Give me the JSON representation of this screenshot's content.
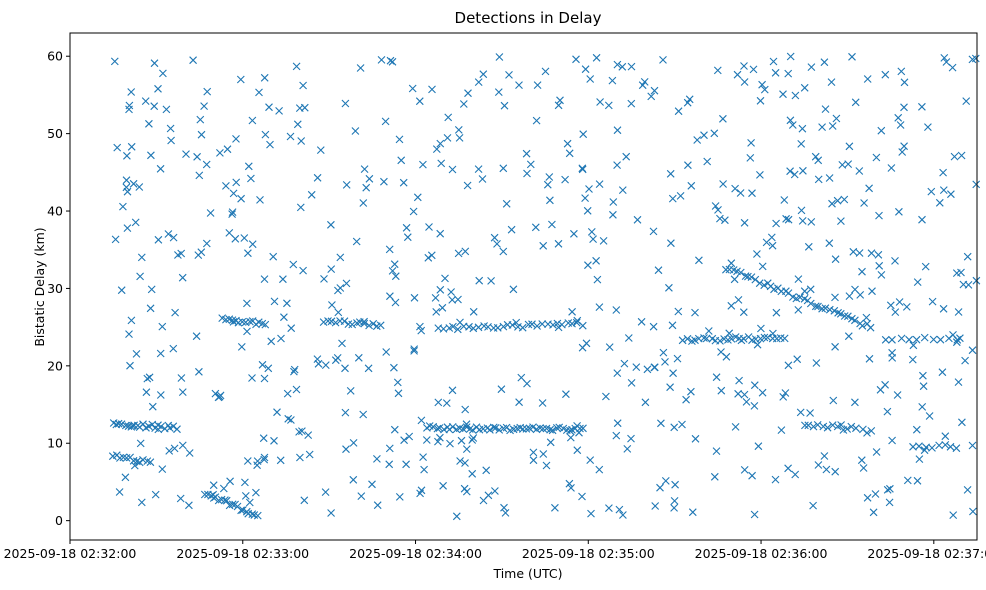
{
  "chart_data": {
    "type": "scatter",
    "title": "Detections in Delay",
    "xlabel": "Time (UTC)",
    "ylabel": "Bistatic Delay (km)",
    "marker": "x",
    "color": "#1f77b4",
    "grid": false,
    "xlim": [
      "2025-09-18 02:32:00",
      "2025-09-18 02:37:15"
    ],
    "ylim": [
      -2.5,
      63
    ],
    "x_ticks": [
      "2025-09-18 02:32:00",
      "2025-09-18 02:33:00",
      "2025-09-18 02:34:00",
      "2025-09-18 02:35:00",
      "2025-09-18 02:36:00",
      "2025-09-18 02:37:00"
    ],
    "y_ticks": [
      0,
      10,
      20,
      30,
      40,
      50,
      60
    ],
    "x_start": "2025-09-18 02:32:15",
    "x_end": "2025-09-18 02:37:15",
    "series": [
      {
        "seed": 20250918,
        "noise_points": 700,
        "noise_y_range": [
          0.5,
          60
        ],
        "tracks": [
          {
            "from": [
              "2025-09-18 02:32:15",
              12.5
            ],
            "to": [
              "2025-09-18 02:32:37",
              12.0
            ],
            "points": 22
          },
          {
            "from": [
              "2025-09-18 02:32:15",
              8.5
            ],
            "to": [
              "2025-09-18 02:32:28",
              7.5
            ],
            "points": 12
          },
          {
            "from": [
              "2025-09-18 02:32:47",
              3.6
            ],
            "to": [
              "2025-09-18 02:33:05",
              0.6
            ],
            "points": 20
          },
          {
            "from": [
              "2025-09-18 02:32:53",
              26.0
            ],
            "to": [
              "2025-09-18 02:33:08",
              25.4
            ],
            "points": 14
          },
          {
            "from": [
              "2025-09-18 02:33:28",
              25.8
            ],
            "to": [
              "2025-09-18 02:33:48",
              25.2
            ],
            "points": 15
          },
          {
            "from": [
              "2025-09-18 02:34:04",
              12.0
            ],
            "to": [
              "2025-09-18 02:34:58",
              11.8
            ],
            "points": 48
          },
          {
            "from": [
              "2025-09-18 02:34:08",
              24.8
            ],
            "to": [
              "2025-09-18 02:34:58",
              25.4
            ],
            "points": 30
          },
          {
            "from": [
              "2025-09-18 02:35:33",
              23.4
            ],
            "to": [
              "2025-09-18 02:36:08",
              23.6
            ],
            "points": 26
          },
          {
            "from": [
              "2025-09-18 02:35:48",
              32.6
            ],
            "to": [
              "2025-09-18 02:36:38",
              25.0
            ],
            "points": 40
          },
          {
            "from": [
              "2025-09-18 02:36:15",
              12.4
            ],
            "to": [
              "2025-09-18 02:36:33",
              12.0
            ],
            "points": 12
          },
          {
            "from": [
              "2025-09-18 02:36:53",
              9.6
            ],
            "to": [
              "2025-09-18 02:37:08",
              9.6
            ],
            "points": 8
          },
          {
            "from": [
              "2025-09-18 02:36:43",
              23.4
            ],
            "to": [
              "2025-09-18 02:37:08",
              23.4
            ],
            "points": 10
          }
        ]
      }
    ]
  }
}
